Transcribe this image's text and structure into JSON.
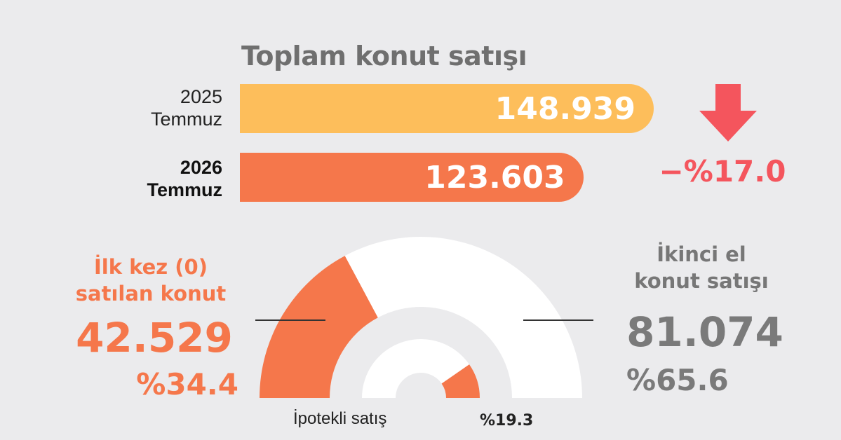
{
  "title": "Toplam konut satışı",
  "bars": [
    {
      "line1": "2025",
      "line2": "Temmuz",
      "value_label": "148.939"
    },
    {
      "line1": "2026",
      "line2": "Temmuz",
      "value_label": "123.603"
    }
  ],
  "change": {
    "label": "−%17.0",
    "icon": "down-arrow-icon",
    "color": "#f4555d"
  },
  "first_sale": {
    "title_line1": "İlk kez (0)",
    "title_line2": "satılan konut",
    "value": "42.529",
    "pct": "%34.4"
  },
  "second_hand": {
    "title_line1": "İkinci el",
    "title_line2": "konut satışı",
    "value": "81.074",
    "pct": "%65.6"
  },
  "mortgage": {
    "label": "İpotekli satış",
    "pct": "%19.3"
  },
  "colors": {
    "bar_2025": "#fdbe5b",
    "accent": "#f5774b",
    "decline": "#f4555d",
    "gauge_rest": "#ffffff",
    "background": "#ebebed"
  },
  "chart_data": [
    {
      "type": "bar",
      "orientation": "horizontal",
      "title": "Toplam konut satışı",
      "categories": [
        "2025 Temmuz",
        "2026 Temmuz"
      ],
      "values": [
        148939,
        123603
      ],
      "change_percent": -17.0
    },
    {
      "type": "pie",
      "style": "half-donut gauge",
      "slices": [
        {
          "label": "İlk kez (0) satılan konut",
          "value": 42529,
          "percent": 34.4
        },
        {
          "label": "İkinci el konut satışı",
          "value": 81074,
          "percent": 65.6
        }
      ]
    },
    {
      "type": "pie",
      "style": "inner half-donut",
      "slices": [
        {
          "label": "İpotekli satış",
          "percent": 19.3
        }
      ]
    }
  ]
}
